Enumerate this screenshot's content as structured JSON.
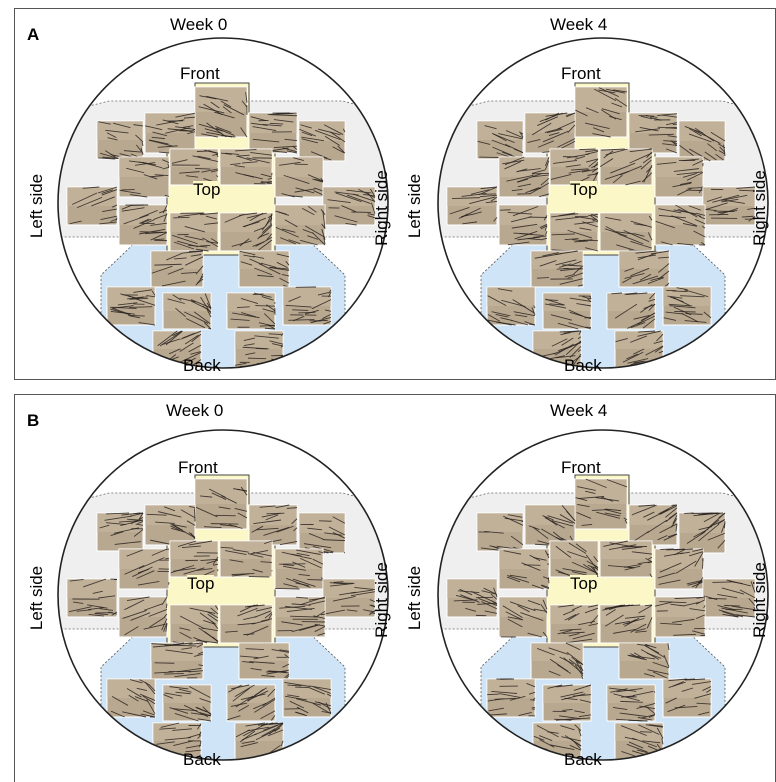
{
  "panels": [
    {
      "letter": "A",
      "left": {
        "week": "Week 0",
        "labels": {
          "front": "Front",
          "top": "Top",
          "back": "Back",
          "left": "Left side",
          "right": "Right side"
        }
      },
      "right": {
        "week": "Week 4",
        "labels": {
          "front": "Front",
          "top": "Top",
          "back": "Back",
          "left": "Left side",
          "right": "Right side"
        }
      }
    },
    {
      "letter": "B",
      "left": {
        "week": "Week 0",
        "labels": {
          "front": "Front",
          "top": "Top",
          "back": "Back",
          "left": "Left side",
          "right": "Right side"
        }
      },
      "right": {
        "week": "Week 4",
        "labels": {
          "front": "Front",
          "top": "Top",
          "back": "Back",
          "left": "Left side",
          "right": "Right side"
        }
      }
    }
  ],
  "colors": {
    "top_region": "#fcf7c6",
    "back_region": "#cfe5f7",
    "side_region": "#efefef",
    "outline": "#222222",
    "photo_base": "#b9a890",
    "hair": "#2a2420"
  }
}
